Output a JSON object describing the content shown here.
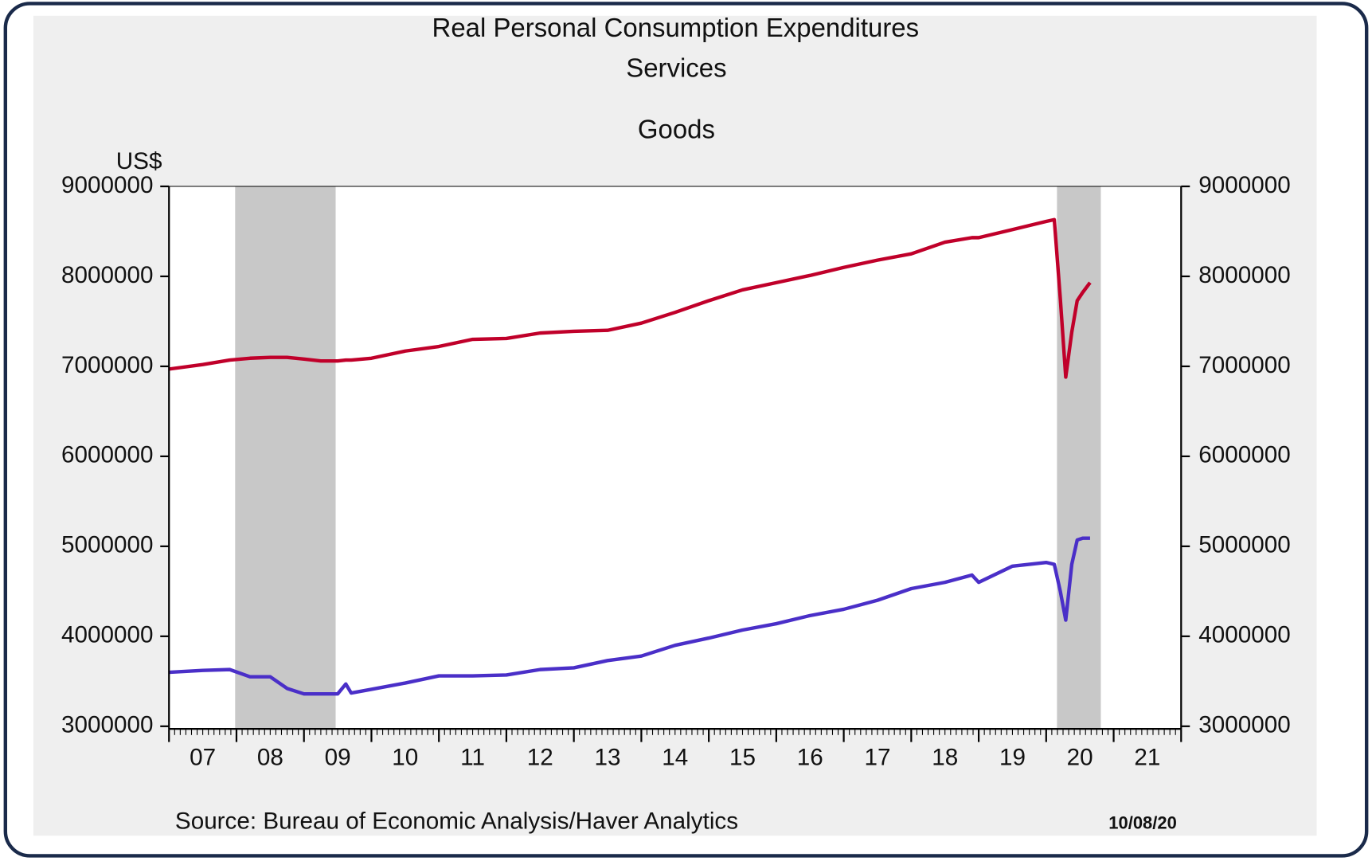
{
  "chart_data": {
    "type": "line",
    "title": "Real Personal Consumption Expenditures",
    "y_label": "US$",
    "source": "Source:  Bureau of Economic Analysis/Haver Analytics",
    "date": "10/08/20",
    "x": [
      2007.0,
      2007.5,
      2007.9,
      2008.2,
      2008.5,
      2008.75,
      2009.0,
      2009.25,
      2009.5,
      2009.62,
      2009.7,
      2010.0,
      2010.5,
      2011.0,
      2011.5,
      2012.0,
      2012.5,
      2013.0,
      2013.5,
      2014.0,
      2014.5,
      2015.0,
      2015.5,
      2016.0,
      2016.5,
      2017.0,
      2017.5,
      2018.0,
      2018.5,
      2018.9,
      2019.0,
      2019.5,
      2020.0,
      2020.12,
      2020.21,
      2020.29,
      2020.38,
      2020.46,
      2020.54,
      2020.65
    ],
    "series": [
      {
        "name": "Services",
        "color": "#c0002a",
        "values": [
          6970000,
          7020000,
          7070000,
          7090000,
          7100000,
          7100000,
          7080000,
          7060000,
          7060000,
          7070000,
          7070000,
          7090000,
          7170000,
          7220000,
          7300000,
          7310000,
          7370000,
          7390000,
          7400000,
          7480000,
          7600000,
          7730000,
          7850000,
          7930000,
          8010000,
          8100000,
          8180000,
          8250000,
          8380000,
          8430000,
          8430000,
          8520000,
          8610000,
          8630000,
          7750000,
          6880000,
          7380000,
          7730000,
          7820000,
          7930000
        ]
      },
      {
        "name": "Goods",
        "color": "#4a2fc8",
        "values": [
          3600000,
          3620000,
          3630000,
          3550000,
          3550000,
          3420000,
          3360000,
          3360000,
          3360000,
          3470000,
          3370000,
          3410000,
          3480000,
          3560000,
          3560000,
          3570000,
          3630000,
          3650000,
          3730000,
          3780000,
          3900000,
          3980000,
          4070000,
          4140000,
          4230000,
          4300000,
          4400000,
          4530000,
          4600000,
          4680000,
          4600000,
          4780000,
          4820000,
          4800000,
          4500000,
          4180000,
          4800000,
          5070000,
          5090000,
          5090000
        ]
      }
    ],
    "recessions": [
      [
        2007.98,
        2009.47
      ],
      [
        2020.16,
        2020.81
      ]
    ],
    "xlim": [
      2007,
      2022
    ],
    "xticks": [
      {
        "value": 2007.5,
        "label": "07"
      },
      {
        "value": 2008.5,
        "label": "08"
      },
      {
        "value": 2009.5,
        "label": "09"
      },
      {
        "value": 2010.5,
        "label": "10"
      },
      {
        "value": 2011.5,
        "label": "11"
      },
      {
        "value": 2012.5,
        "label": "12"
      },
      {
        "value": 2013.5,
        "label": "13"
      },
      {
        "value": 2014.5,
        "label": "14"
      },
      {
        "value": 2015.5,
        "label": "15"
      },
      {
        "value": 2016.5,
        "label": "16"
      },
      {
        "value": 2017.5,
        "label": "17"
      },
      {
        "value": 2018.5,
        "label": "18"
      },
      {
        "value": 2019.5,
        "label": "19"
      },
      {
        "value": 2020.5,
        "label": "20"
      },
      {
        "value": 2021.5,
        "label": "21"
      }
    ],
    "ylim": [
      3000000,
      9000000
    ],
    "yticks": [
      3000000,
      4000000,
      5000000,
      6000000,
      7000000,
      8000000,
      9000000
    ],
    "y2lim": [
      3000000,
      9000000
    ],
    "y2ticks": [
      3000000,
      4000000,
      5000000,
      6000000,
      7000000,
      8000000,
      9000000
    ]
  }
}
